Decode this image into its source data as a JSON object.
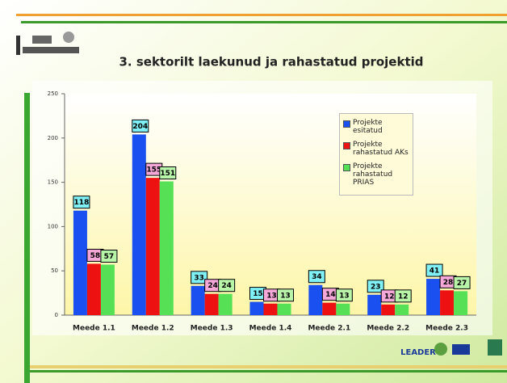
{
  "chart_data": {
    "type": "bar",
    "title": "3. sektorilt laekunud ja rahastatud projektid",
    "categories": [
      "Meede 1.1",
      "Meede 1.2",
      "Meede 1.3",
      "Meede 1.4",
      "Meede 2.1",
      "Meede 2.2",
      "Meede 2.3"
    ],
    "series": [
      {
        "name": "Projekte esitatud",
        "color": "#1a4ff0",
        "label_color": "#7ff0f5",
        "values": [
          118,
          204,
          33,
          15,
          34,
          23,
          41
        ]
      },
      {
        "name": "Projekte rahastatud AKs",
        "color": "#ee1111",
        "label_color": "#f5a8d8",
        "values": [
          58,
          155,
          24,
          13,
          14,
          12,
          28
        ]
      },
      {
        "name": "Projekte rahastatud PRIAS",
        "color": "#55e055",
        "label_color": "#b8f5a8",
        "values": [
          57,
          151,
          24,
          13,
          13,
          12,
          27
        ]
      }
    ],
    "ylim": [
      0,
      250
    ],
    "yticks": [
      0,
      50,
      100,
      150,
      200,
      250
    ],
    "grid": false
  },
  "footer_logo": "LEADER"
}
